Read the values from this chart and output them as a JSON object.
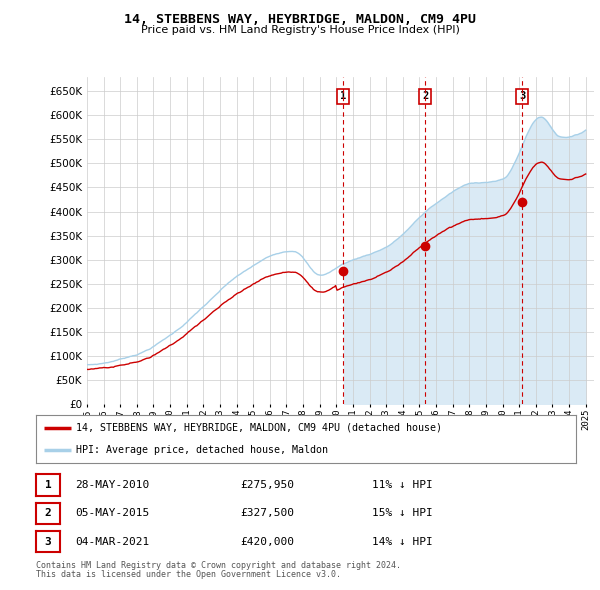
{
  "title": "14, STEBBENS WAY, HEYBRIDGE, MALDON, CM9 4PU",
  "subtitle": "Price paid vs. HM Land Registry's House Price Index (HPI)",
  "ylabel_ticks": [
    0,
    50000,
    100000,
    150000,
    200000,
    250000,
    300000,
    350000,
    400000,
    450000,
    500000,
    550000,
    600000,
    650000
  ],
  "ylim": [
    0,
    680000
  ],
  "xlim_start": 1995.0,
  "xlim_end": 2025.5,
  "hpi_color": "#a8d0e8",
  "hpi_fill_color": "#daeaf5",
  "price_color": "#cc0000",
  "marker_color": "#cc0000",
  "dashed_color": "#cc0000",
  "transaction_dates": [
    2010.41,
    2015.34,
    2021.17
  ],
  "transaction_prices": [
    275950,
    327500,
    420000
  ],
  "transaction_labels": [
    "1",
    "2",
    "3"
  ],
  "legend_address": "14, STEBBENS WAY, HEYBRIDGE, MALDON, CM9 4PU (detached house)",
  "legend_hpi": "HPI: Average price, detached house, Maldon",
  "table_entries": [
    {
      "num": "1",
      "date": "28-MAY-2010",
      "price": "£275,950",
      "pct": "11% ↓ HPI"
    },
    {
      "num": "2",
      "date": "05-MAY-2015",
      "price": "£327,500",
      "pct": "15% ↓ HPI"
    },
    {
      "num": "3",
      "date": "04-MAR-2021",
      "price": "£420,000",
      "pct": "14% ↓ HPI"
    }
  ],
  "footnote1": "Contains HM Land Registry data © Crown copyright and database right 2024.",
  "footnote2": "This data is licensed under the Open Government Licence v3.0.",
  "background_color": "#ffffff",
  "grid_color": "#cccccc"
}
